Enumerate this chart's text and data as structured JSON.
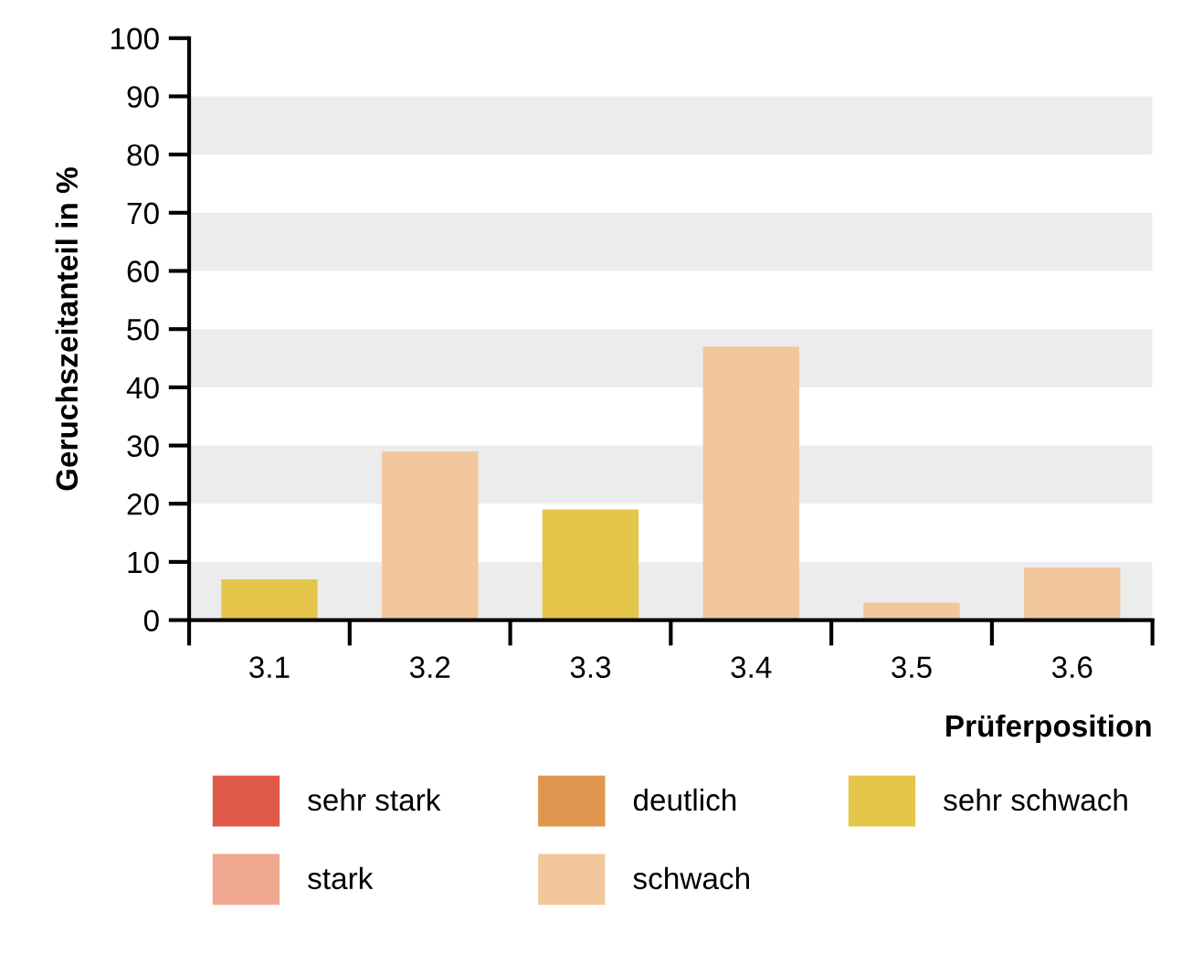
{
  "chart_data": {
    "type": "bar",
    "xlabel": "Prüferposition",
    "ylabel": "Geruchszeitanteil in %",
    "categories": [
      "3.1",
      "3.2",
      "3.3",
      "3.4",
      "3.5",
      "3.6"
    ],
    "series": [
      {
        "name": "sehr stark",
        "color": "#e05a4a",
        "values": [
          null,
          null,
          null,
          null,
          null,
          null
        ]
      },
      {
        "name": "deutlich",
        "color": "#e0964e",
        "values": [
          null,
          null,
          null,
          null,
          null,
          null
        ]
      },
      {
        "name": "sehr schwach",
        "color": "#e6c64a",
        "values": [
          7,
          null,
          19,
          null,
          null,
          null
        ]
      },
      {
        "name": "stark",
        "color": "#f0a890",
        "values": [
          null,
          null,
          null,
          null,
          null,
          null
        ]
      },
      {
        "name": "schwach",
        "color": "#f2c79c",
        "values": [
          null,
          29,
          null,
          47,
          3,
          9
        ]
      }
    ],
    "ylim": [
      0,
      100
    ],
    "yticks": [
      0,
      10,
      20,
      30,
      40,
      50,
      60,
      70,
      80,
      90,
      100
    ],
    "bands": [
      {
        "axis": "y",
        "from": 0,
        "to": 10,
        "color": "#ececec"
      },
      {
        "axis": "y",
        "from": 20,
        "to": 30,
        "color": "#ececec"
      },
      {
        "axis": "y",
        "from": 40,
        "to": 50,
        "color": "#ececec"
      },
      {
        "axis": "y",
        "from": 60,
        "to": 70,
        "color": "#ececec"
      },
      {
        "axis": "y",
        "from": 80,
        "to": 90,
        "color": "#ececec"
      }
    ],
    "legend": "bottom"
  }
}
